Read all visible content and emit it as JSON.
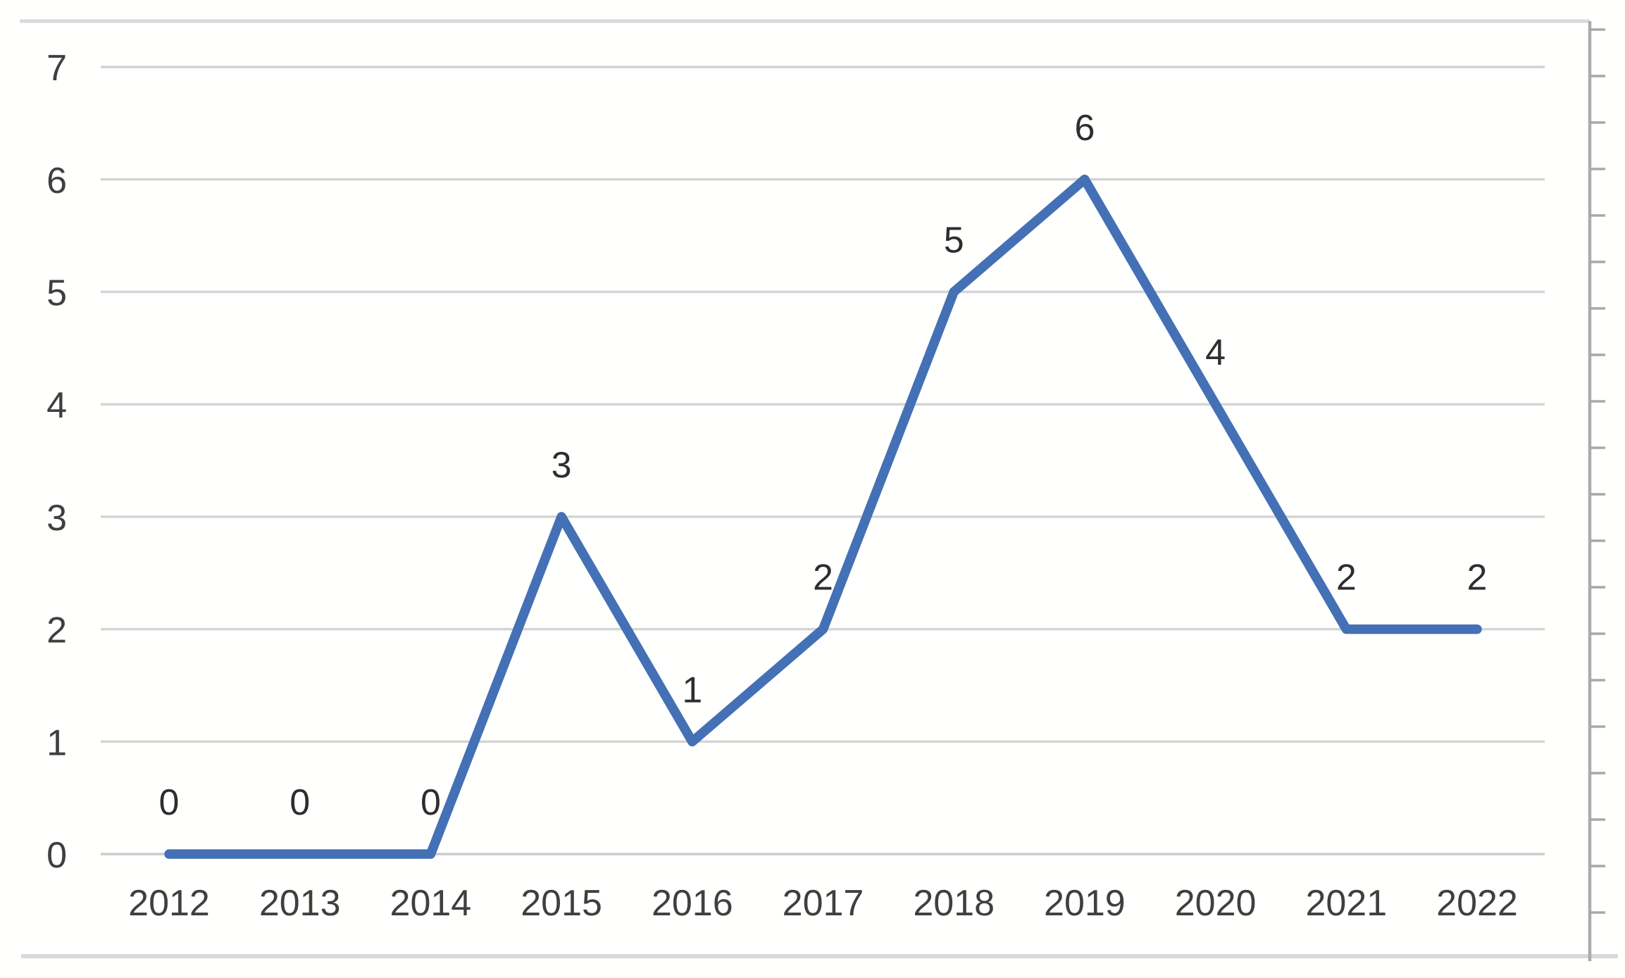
{
  "chart_data": {
    "type": "line",
    "title": "",
    "xlabel": "",
    "ylabel": "",
    "categories": [
      "2012",
      "2013",
      "2014",
      "2015",
      "2016",
      "2017",
      "2018",
      "2019",
      "2020",
      "2021",
      "2022"
    ],
    "values": [
      0,
      0,
      0,
      3,
      1,
      2,
      5,
      6,
      4,
      2,
      2
    ],
    "data_labels": [
      "0",
      "0",
      "0",
      "3",
      "1",
      "2",
      "5",
      "6",
      "4",
      "2",
      "2"
    ],
    "data_label_position": "above",
    "y_ticks": [
      "0",
      "1",
      "2",
      "3",
      "4",
      "5",
      "6",
      "7"
    ],
    "ylim": [
      0,
      7
    ],
    "grid": true,
    "legend": false,
    "colors": {
      "line": "#4470B5",
      "grid": "#D4D4D4",
      "baseline_grid": "#CCCCCC",
      "axis_text": "#3F3F3F",
      "data_label_text": "#2E2E2E",
      "frame_border": "#D9D9D9",
      "ruler_line": "#ABABAB",
      "ruler_tick": "#A8A8A8",
      "background": "#FFFFFE"
    }
  }
}
